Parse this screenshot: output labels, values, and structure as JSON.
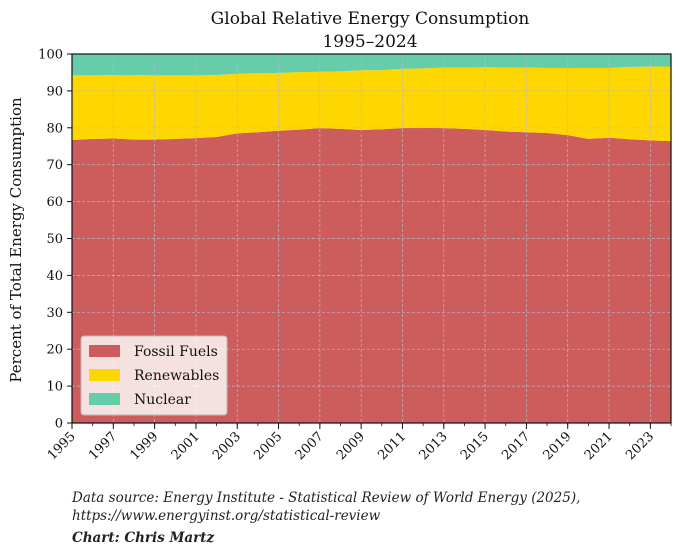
{
  "chart_data": {
    "type": "area",
    "stacked": true,
    "title": "Global Relative Energy Consumption",
    "subtitle": "1995–2024",
    "xlabel": "",
    "ylabel": "Percent of Total Energy Consumption",
    "xlim": [
      1995,
      2024
    ],
    "ylim": [
      0,
      100
    ],
    "x": [
      1995,
      1996,
      1997,
      1998,
      1999,
      2000,
      2001,
      2002,
      2003,
      2004,
      2005,
      2006,
      2007,
      2008,
      2009,
      2010,
      2011,
      2012,
      2013,
      2014,
      2015,
      2016,
      2017,
      2018,
      2019,
      2020,
      2021,
      2022,
      2023,
      2024
    ],
    "x_tick_labels": [
      "1995",
      "1997",
      "1999",
      "2001",
      "2003",
      "2005",
      "2007",
      "2009",
      "2011",
      "2013",
      "2015",
      "2017",
      "2019",
      "2021",
      "2023"
    ],
    "y_ticks": [
      0,
      10,
      20,
      30,
      40,
      50,
      60,
      70,
      80,
      90,
      100
    ],
    "grid": true,
    "legend_position": "lower-left",
    "series": [
      {
        "name": "Fossil Fuels",
        "color": "#cd5c5c",
        "values": [
          76.7,
          77.0,
          77.1,
          76.8,
          76.8,
          77.0,
          77.2,
          77.5,
          78.5,
          78.8,
          79.2,
          79.5,
          79.9,
          79.7,
          79.4,
          79.6,
          79.9,
          80.0,
          79.9,
          79.7,
          79.4,
          79.0,
          78.8,
          78.6,
          78.0,
          77.0,
          77.3,
          76.9,
          76.6,
          76.4
        ]
      },
      {
        "name": "Renewables",
        "color": "#ffd700",
        "values": [
          17.5,
          17.2,
          17.2,
          17.5,
          17.4,
          17.2,
          17.0,
          16.8,
          16.1,
          16.0,
          15.7,
          15.6,
          15.3,
          15.6,
          16.2,
          16.0,
          16.1,
          16.1,
          16.4,
          16.6,
          17.0,
          17.3,
          17.5,
          17.6,
          18.2,
          19.2,
          18.9,
          19.6,
          20.0,
          20.2
        ]
      },
      {
        "name": "Nuclear",
        "color": "#66cdaa",
        "values": [
          5.8,
          5.8,
          5.7,
          5.7,
          5.8,
          5.8,
          5.8,
          5.7,
          5.4,
          5.2,
          5.1,
          4.9,
          4.8,
          4.7,
          4.4,
          4.4,
          4.0,
          3.9,
          3.7,
          3.7,
          3.6,
          3.7,
          3.7,
          3.8,
          3.8,
          3.8,
          3.8,
          3.5,
          3.4,
          3.4
        ]
      }
    ]
  },
  "footer": {
    "source": "Data source: Energy Institute - Statistical Review of World Energy (2025), https://www.energyinst.org/statistical-review",
    "credit": "Chart: Chris Martz"
  }
}
